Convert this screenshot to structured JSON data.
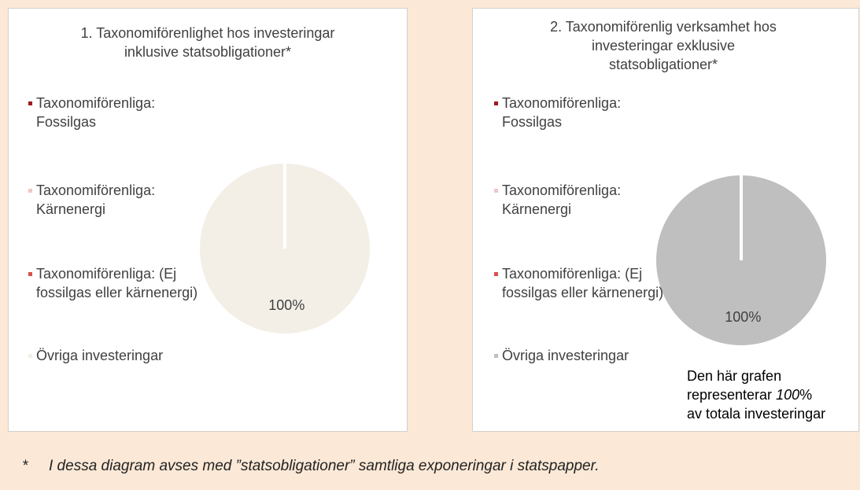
{
  "chart_data": [
    {
      "type": "pie",
      "title": [
        "1. Taxonomiförenlighet hos investeringar",
        "inklusive statsobligationer*"
      ],
      "categories": [
        "Taxonomiförenliga: Fossilgas",
        "Taxonomiförenliga: Kärnenergi",
        "Taxonomiförenliga: (Ej fossilgas eller kärnenergi)",
        "Övriga investeringar"
      ],
      "values": [
        0,
        0,
        0,
        100
      ],
      "value_labels": [
        null,
        null,
        null,
        "100%"
      ],
      "colors": [
        "#9e1b20",
        "#f2c6c6",
        "#d9504c",
        "#f3efe6"
      ]
    },
    {
      "type": "pie",
      "title": [
        "2. Taxonomiförenlig verksamhet hos",
        "investeringar exklusive",
        "statsobligationer*"
      ],
      "categories": [
        "Taxonomiförenliga: Fossilgas",
        "Taxonomiförenliga: Kärnenergi",
        "Taxonomiförenliga: (Ej fossilgas eller kärnenergi)",
        "Övriga investeringar"
      ],
      "values": [
        0,
        0,
        0,
        100
      ],
      "value_labels": [
        null,
        null,
        null,
        "100%"
      ],
      "colors": [
        "#9e1b20",
        "#f2c6c6",
        "#d9504c",
        "#bfbfbf"
      ],
      "annotation": [
        "Den här grafen",
        "representerar",
        "100",
        "%",
        "av totala investeringar"
      ]
    }
  ],
  "footnote": {
    "marker": "*",
    "text": "I dessa diagram avses med ”statsobligationer” samtliga exponeringar i statspapper."
  }
}
